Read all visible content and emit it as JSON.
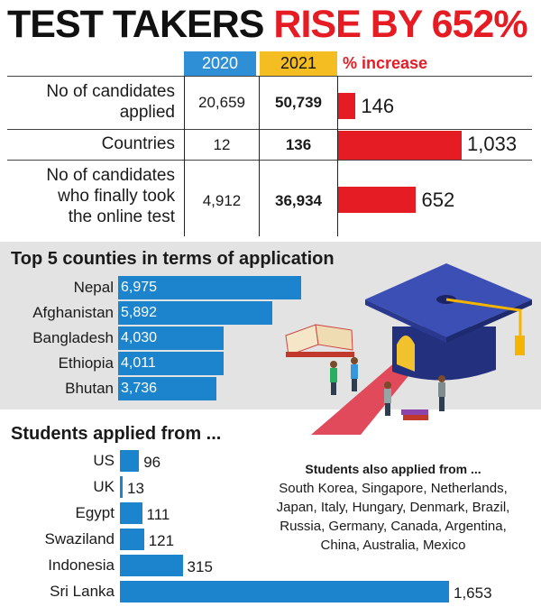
{
  "headline": {
    "part1": "TEST TAKERS",
    "part2": "RISE BY 652%"
  },
  "colors": {
    "red": "#e51c24",
    "blue": "#1b84cc",
    "header_2020": "#2f8fd6",
    "header_2021": "#f4be22",
    "band": "#e3e3e3"
  },
  "table": {
    "headers": [
      "2020",
      "2021",
      "% increase"
    ],
    "rows": [
      {
        "label": [
          "No of candidates",
          "applied"
        ],
        "v2020": "20,659",
        "v2021": "50,739",
        "pct": 146,
        "pct_label": "146"
      },
      {
        "label": [
          "Countries"
        ],
        "v2020": "12",
        "v2021": "136",
        "pct": 1033,
        "pct_label": "1,033"
      },
      {
        "label": [
          "No of candidates",
          "who finally took",
          "the online test"
        ],
        "v2020": "4,912",
        "v2021": "36,934",
        "pct": 652,
        "pct_label": "652"
      }
    ]
  },
  "top5": {
    "title": "Top 5 counties in terms of application",
    "items": [
      {
        "country": "Nepal",
        "value": 6975,
        "label": "6,975"
      },
      {
        "country": "Afghanistan",
        "value": 5892,
        "label": "5,892"
      },
      {
        "country": "Bangladesh",
        "value": 4030,
        "label": "4,030"
      },
      {
        "country": "Ethiopia",
        "value": 4011,
        "label": "4,011"
      },
      {
        "country": "Bhutan",
        "value": 3736,
        "label": "3,736"
      }
    ]
  },
  "applied_from": {
    "title": "Students applied from ...",
    "items": [
      {
        "country": "US",
        "value": 96,
        "label": "96"
      },
      {
        "country": "UK",
        "value": 13,
        "label": "13"
      },
      {
        "country": "Egypt",
        "value": 111,
        "label": "111"
      },
      {
        "country": "Swaziland",
        "value": 121,
        "label": "121"
      },
      {
        "country": "Indonesia",
        "value": 315,
        "label": "315"
      },
      {
        "country": "Sri Lanka",
        "value": 1653,
        "label": "1,653"
      }
    ]
  },
  "also_applied": {
    "title": "Students also applied from ...",
    "lines": [
      "South Korea, Singapore, Netherlands,",
      "Japan, Italy, Hungary, Denmark, Brazil,",
      "Russia, Germany, Canada, Argentina,",
      "China, Australia, Mexico"
    ]
  },
  "illustration": {
    "icon": "graduation-cap-illustration"
  },
  "chart_data": [
    {
      "type": "table",
      "columns": [
        "2020",
        "2021",
        "% increase"
      ],
      "rows": [
        [
          "No of candidates applied",
          "20,659",
          "50,739",
          146
        ],
        [
          "Countries",
          "12",
          "136",
          1033
        ],
        [
          "No of candidates who finally took the online test",
          "4,912",
          "36,934",
          652
        ]
      ]
    },
    {
      "type": "bar",
      "orientation": "horizontal",
      "title": "Top 5 counties in terms of application",
      "categories": [
        "Nepal",
        "Afghanistan",
        "Bangladesh",
        "Ethiopia",
        "Bhutan"
      ],
      "values": [
        6975,
        5892,
        4030,
        4011,
        3736
      ]
    },
    {
      "type": "bar",
      "orientation": "horizontal",
      "title": "Students applied from ...",
      "categories": [
        "US",
        "UK",
        "Egypt",
        "Swaziland",
        "Indonesia",
        "Sri Lanka"
      ],
      "values": [
        96,
        13,
        111,
        121,
        315,
        1653
      ]
    }
  ]
}
